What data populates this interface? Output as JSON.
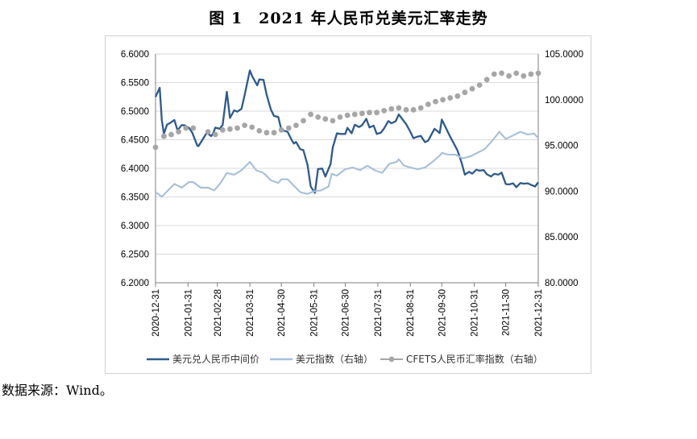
{
  "title": "图 1　2021 年人民币兑美元汇率走势",
  "source": "数据来源：Wind。",
  "chart_data": {
    "type": "line",
    "title": "图 1　2021 年人民币兑美元汇率走势",
    "x_ticks": [
      "2020-12-31",
      "2021-01-31",
      "2021-02-28",
      "2021-03-31",
      "2021-04-30",
      "2021-05-31",
      "2021-06-30",
      "2021-07-31",
      "2021-08-31",
      "2021-09-30",
      "2021-10-31",
      "2021-11-30",
      "2021-12-31"
    ],
    "left_axis": {
      "min": 6.2,
      "max": 6.6,
      "ticks": [
        "6.2000",
        "6.2500",
        "6.3000",
        "6.3500",
        "6.4000",
        "6.4500",
        "6.5000",
        "6.5500",
        "6.6000"
      ]
    },
    "right_axis": {
      "min": 80,
      "max": 105,
      "ticks": [
        "80.0000",
        "85.0000",
        "90.0000",
        "95.0000",
        "100.0000",
        "105.0000"
      ]
    },
    "grid": true,
    "legend_position": "bottom",
    "series": [
      {
        "name": "美元兑人民币中间价",
        "axis": "left",
        "color": "#2e5a8a",
        "style": "line",
        "points": [
          [
            "2020-12-31",
            6.5249
          ],
          [
            "2021-01-04",
            6.5408
          ],
          [
            "2021-01-06",
            6.4845
          ],
          [
            "2021-01-08",
            6.4605
          ],
          [
            "2021-01-11",
            6.4764
          ],
          [
            "2021-01-14",
            6.4795
          ],
          [
            "2021-01-18",
            6.4845
          ],
          [
            "2021-01-21",
            6.4665
          ],
          [
            "2021-01-25",
            6.4757
          ],
          [
            "2021-01-28",
            6.4751
          ],
          [
            "2021-02-01",
            6.4709
          ],
          [
            "2021-02-04",
            6.4626
          ],
          [
            "2021-02-09",
            6.4391
          ],
          [
            "2021-02-10",
            6.4391
          ],
          [
            "2021-02-18",
            6.4624
          ],
          [
            "2021-02-22",
            6.4563
          ],
          [
            "2021-02-24",
            6.4612
          ],
          [
            "2021-02-26",
            6.4713
          ],
          [
            "2021-03-02",
            6.4692
          ],
          [
            "2021-03-05",
            6.4758
          ],
          [
            "2021-03-09",
            6.5338
          ],
          [
            "2021-03-12",
            6.4881
          ],
          [
            "2021-03-16",
            6.5014
          ],
          [
            "2021-03-19",
            6.499
          ],
          [
            "2021-03-23",
            6.5041
          ],
          [
            "2021-03-26",
            6.5282
          ],
          [
            "2021-03-31",
            6.5713
          ],
          [
            "2021-04-02",
            6.5618
          ],
          [
            "2021-04-07",
            6.5452
          ],
          [
            "2021-04-09",
            6.5554
          ],
          [
            "2021-04-13",
            6.5548
          ],
          [
            "2021-04-16",
            6.5288
          ],
          [
            "2021-04-20",
            6.5027
          ],
          [
            "2021-04-23",
            6.4915
          ],
          [
            "2021-04-27",
            6.49
          ],
          [
            "2021-04-30",
            6.4672
          ],
          [
            "2021-05-06",
            6.4638
          ],
          [
            "2021-05-10",
            6.449
          ],
          [
            "2021-05-12",
            6.4434
          ],
          [
            "2021-05-14",
            6.4462
          ],
          [
            "2021-05-18",
            6.4335
          ],
          [
            "2021-05-21",
            6.4318
          ],
          [
            "2021-05-25",
            6.4058
          ],
          [
            "2021-05-28",
            6.3682
          ],
          [
            "2021-06-01",
            6.3572
          ],
          [
            "2021-06-04",
            6.3989
          ],
          [
            "2021-06-08",
            6.3996
          ],
          [
            "2021-06-11",
            6.3856
          ],
          [
            "2021-06-16",
            6.4078
          ],
          [
            "2021-06-18",
            6.4361
          ],
          [
            "2021-06-22",
            6.4613
          ],
          [
            "2021-06-25",
            6.4601
          ],
          [
            "2021-06-30",
            6.4601
          ],
          [
            "2021-07-02",
            6.4709
          ],
          [
            "2021-07-06",
            6.4613
          ],
          [
            "2021-07-09",
            6.4762
          ],
          [
            "2021-07-13",
            6.4723
          ],
          [
            "2021-07-16",
            6.4755
          ],
          [
            "2021-07-20",
            6.4866
          ],
          [
            "2021-07-23",
            6.4715
          ],
          [
            "2021-07-27",
            6.4746
          ],
          [
            "2021-07-30",
            6.4602
          ],
          [
            "2021-08-03",
            6.4626
          ],
          [
            "2021-08-06",
            6.4698
          ],
          [
            "2021-08-10",
            6.4827
          ],
          [
            "2021-08-13",
            6.4789
          ],
          [
            "2021-08-17",
            6.4822
          ],
          [
            "2021-08-20",
            6.4942
          ],
          [
            "2021-08-24",
            6.4845
          ],
          [
            "2021-08-27",
            6.4773
          ],
          [
            "2021-08-31",
            6.4641
          ],
          [
            "2021-09-03",
            6.4527
          ],
          [
            "2021-09-07",
            6.4555
          ],
          [
            "2021-09-10",
            6.4568
          ],
          [
            "2021-09-14",
            6.4458
          ],
          [
            "2021-09-17",
            6.4485
          ],
          [
            "2021-09-23",
            6.4692
          ],
          [
            "2021-09-28",
            6.4617
          ],
          [
            "2021-09-30",
            6.4854
          ],
          [
            "2021-10-08",
            6.4553
          ],
          [
            "2021-10-12",
            6.4417
          ],
          [
            "2021-10-15",
            6.4311
          ],
          [
            "2021-10-19",
            6.4093
          ],
          [
            "2021-10-22",
            6.389
          ],
          [
            "2021-10-26",
            6.394
          ],
          [
            "2021-10-29",
            6.3907
          ],
          [
            "2021-11-02",
            6.3976
          ],
          [
            "2021-11-05",
            6.3959
          ],
          [
            "2021-11-09",
            6.3969
          ],
          [
            "2021-11-12",
            6.3896
          ],
          [
            "2021-11-16",
            6.3858
          ],
          [
            "2021-11-19",
            6.3903
          ],
          [
            "2021-11-23",
            6.389
          ],
          [
            "2021-11-26",
            6.3925
          ],
          [
            "2021-11-30",
            6.3726
          ],
          [
            "2021-12-03",
            6.3719
          ],
          [
            "2021-12-07",
            6.3738
          ],
          [
            "2021-12-10",
            6.367
          ],
          [
            "2021-12-14",
            6.3744
          ],
          [
            "2021-12-17",
            6.3732
          ],
          [
            "2021-12-21",
            6.3738
          ],
          [
            "2021-12-24",
            6.3712
          ],
          [
            "2021-12-28",
            6.3683
          ],
          [
            "2021-12-31",
            6.3757
          ]
        ]
      },
      {
        "name": "美元指数（右轴）",
        "axis": "right",
        "color": "#a7bfd9",
        "style": "line",
        "points": [
          [
            "2020-12-31",
            89.9
          ],
          [
            "2021-01-06",
            89.4
          ],
          [
            "2021-01-12",
            90.1
          ],
          [
            "2021-01-18",
            90.8
          ],
          [
            "2021-01-25",
            90.4
          ],
          [
            "2021-02-01",
            91.0
          ],
          [
            "2021-02-05",
            91.0
          ],
          [
            "2021-02-12",
            90.4
          ],
          [
            "2021-02-19",
            90.4
          ],
          [
            "2021-02-25",
            90.1
          ],
          [
            "2021-03-03",
            90.9
          ],
          [
            "2021-03-09",
            92.0
          ],
          [
            "2021-03-16",
            91.8
          ],
          [
            "2021-03-23",
            92.3
          ],
          [
            "2021-03-31",
            93.2
          ],
          [
            "2021-04-06",
            92.3
          ],
          [
            "2021-04-13",
            92.0
          ],
          [
            "2021-04-20",
            91.2
          ],
          [
            "2021-04-27",
            90.9
          ],
          [
            "2021-04-30",
            91.3
          ],
          [
            "2021-05-06",
            91.3
          ],
          [
            "2021-05-12",
            90.6
          ],
          [
            "2021-05-18",
            89.9
          ],
          [
            "2021-05-25",
            89.7
          ],
          [
            "2021-05-31",
            90.0
          ],
          [
            "2021-06-07",
            90.1
          ],
          [
            "2021-06-14",
            90.5
          ],
          [
            "2021-06-17",
            91.9
          ],
          [
            "2021-06-22",
            91.7
          ],
          [
            "2021-06-30",
            92.4
          ],
          [
            "2021-07-07",
            92.6
          ],
          [
            "2021-07-14",
            92.3
          ],
          [
            "2021-07-21",
            92.8
          ],
          [
            "2021-07-28",
            92.3
          ],
          [
            "2021-08-04",
            92.0
          ],
          [
            "2021-08-11",
            93.0
          ],
          [
            "2021-08-18",
            93.2
          ],
          [
            "2021-08-20",
            93.5
          ],
          [
            "2021-08-25",
            92.8
          ],
          [
            "2021-08-31",
            92.6
          ],
          [
            "2021-09-07",
            92.4
          ],
          [
            "2021-09-14",
            92.6
          ],
          [
            "2021-09-21",
            93.2
          ],
          [
            "2021-09-29",
            94.0
          ],
          [
            "2021-09-30",
            94.2
          ],
          [
            "2021-10-06",
            94.0
          ],
          [
            "2021-10-13",
            94.0
          ],
          [
            "2021-10-20",
            93.6
          ],
          [
            "2021-10-27",
            93.8
          ],
          [
            "2021-11-03",
            94.2
          ],
          [
            "2021-11-10",
            94.6
          ],
          [
            "2021-11-17",
            95.5
          ],
          [
            "2021-11-24",
            96.5
          ],
          [
            "2021-11-30",
            95.7
          ],
          [
            "2021-12-07",
            96.1
          ],
          [
            "2021-12-14",
            96.5
          ],
          [
            "2021-12-21",
            96.2
          ],
          [
            "2021-12-27",
            96.3
          ],
          [
            "2021-12-31",
            95.8
          ]
        ]
      },
      {
        "name": "CFETS人民币汇率指数（右轴）",
        "axis": "right",
        "color": "#a6a6a6",
        "style": "dots",
        "points": [
          [
            "2020-12-31",
            94.8
          ],
          [
            "2021-01-08",
            96.0
          ],
          [
            "2021-01-15",
            96.2
          ],
          [
            "2021-01-22",
            96.5
          ],
          [
            "2021-01-29",
            96.9
          ],
          [
            "2021-02-05",
            96.9
          ],
          [
            "2021-02-19",
            96.5
          ],
          [
            "2021-02-26",
            96.2
          ],
          [
            "2021-03-05",
            96.7
          ],
          [
            "2021-03-12",
            96.8
          ],
          [
            "2021-03-19",
            96.9
          ],
          [
            "2021-03-26",
            97.2
          ],
          [
            "2021-04-02",
            97.0
          ],
          [
            "2021-04-09",
            96.6
          ],
          [
            "2021-04-16",
            96.4
          ],
          [
            "2021-04-23",
            96.4
          ],
          [
            "2021-04-30",
            96.7
          ],
          [
            "2021-05-07",
            96.9
          ],
          [
            "2021-05-14",
            97.2
          ],
          [
            "2021-05-21",
            97.7
          ],
          [
            "2021-05-28",
            98.4
          ],
          [
            "2021-06-04",
            98.1
          ],
          [
            "2021-06-11",
            97.9
          ],
          [
            "2021-06-18",
            97.7
          ],
          [
            "2021-06-25",
            98.1
          ],
          [
            "2021-07-02",
            98.3
          ],
          [
            "2021-07-09",
            98.4
          ],
          [
            "2021-07-16",
            98.5
          ],
          [
            "2021-07-23",
            98.6
          ],
          [
            "2021-07-30",
            98.6
          ],
          [
            "2021-08-06",
            98.8
          ],
          [
            "2021-08-13",
            99.0
          ],
          [
            "2021-08-20",
            99.1
          ],
          [
            "2021-08-27",
            98.9
          ],
          [
            "2021-09-03",
            98.9
          ],
          [
            "2021-09-10",
            99.1
          ],
          [
            "2021-09-17",
            99.5
          ],
          [
            "2021-09-24",
            99.8
          ],
          [
            "2021-10-01",
            100.0
          ],
          [
            "2021-10-08",
            100.2
          ],
          [
            "2021-10-15",
            100.4
          ],
          [
            "2021-10-22",
            100.8
          ],
          [
            "2021-10-29",
            101.2
          ],
          [
            "2021-11-05",
            101.6
          ],
          [
            "2021-11-12",
            102.2
          ],
          [
            "2021-11-19",
            102.8
          ],
          [
            "2021-11-26",
            102.9
          ],
          [
            "2021-12-03",
            102.6
          ],
          [
            "2021-12-10",
            102.9
          ],
          [
            "2021-12-17",
            102.6
          ],
          [
            "2021-12-24",
            102.8
          ],
          [
            "2021-12-31",
            102.9
          ]
        ]
      }
    ]
  }
}
